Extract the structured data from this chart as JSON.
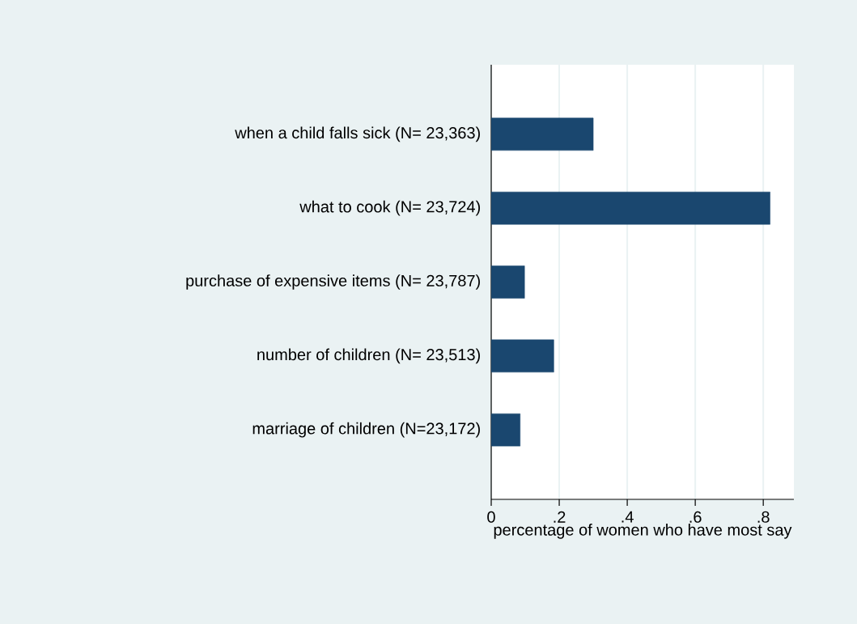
{
  "chart_data": {
    "type": "bar",
    "orientation": "horizontal",
    "categories": [
      "when a child falls sick (N= 23,363)",
      "what to cook (N= 23,724)",
      "purchase of expensive items (N= 23,787)",
      "number of children (N= 23,513)",
      "marriage of children (N=23,172)"
    ],
    "values": [
      0.3,
      0.82,
      0.098,
      0.184,
      0.085
    ],
    "color": "#1a476f",
    "xlabel": "percentage of women who have most say",
    "xlim": [
      0,
      0.89
    ],
    "xticks": [
      0,
      {
        "value": 0.2,
        "label": ".2"
      },
      {
        "value": 0.4,
        "label": ".4"
      },
      {
        "value": 0.6,
        "label": ".6"
      },
      {
        "value": 0.8,
        "label": ".8"
      }
    ],
    "grid": "x"
  }
}
